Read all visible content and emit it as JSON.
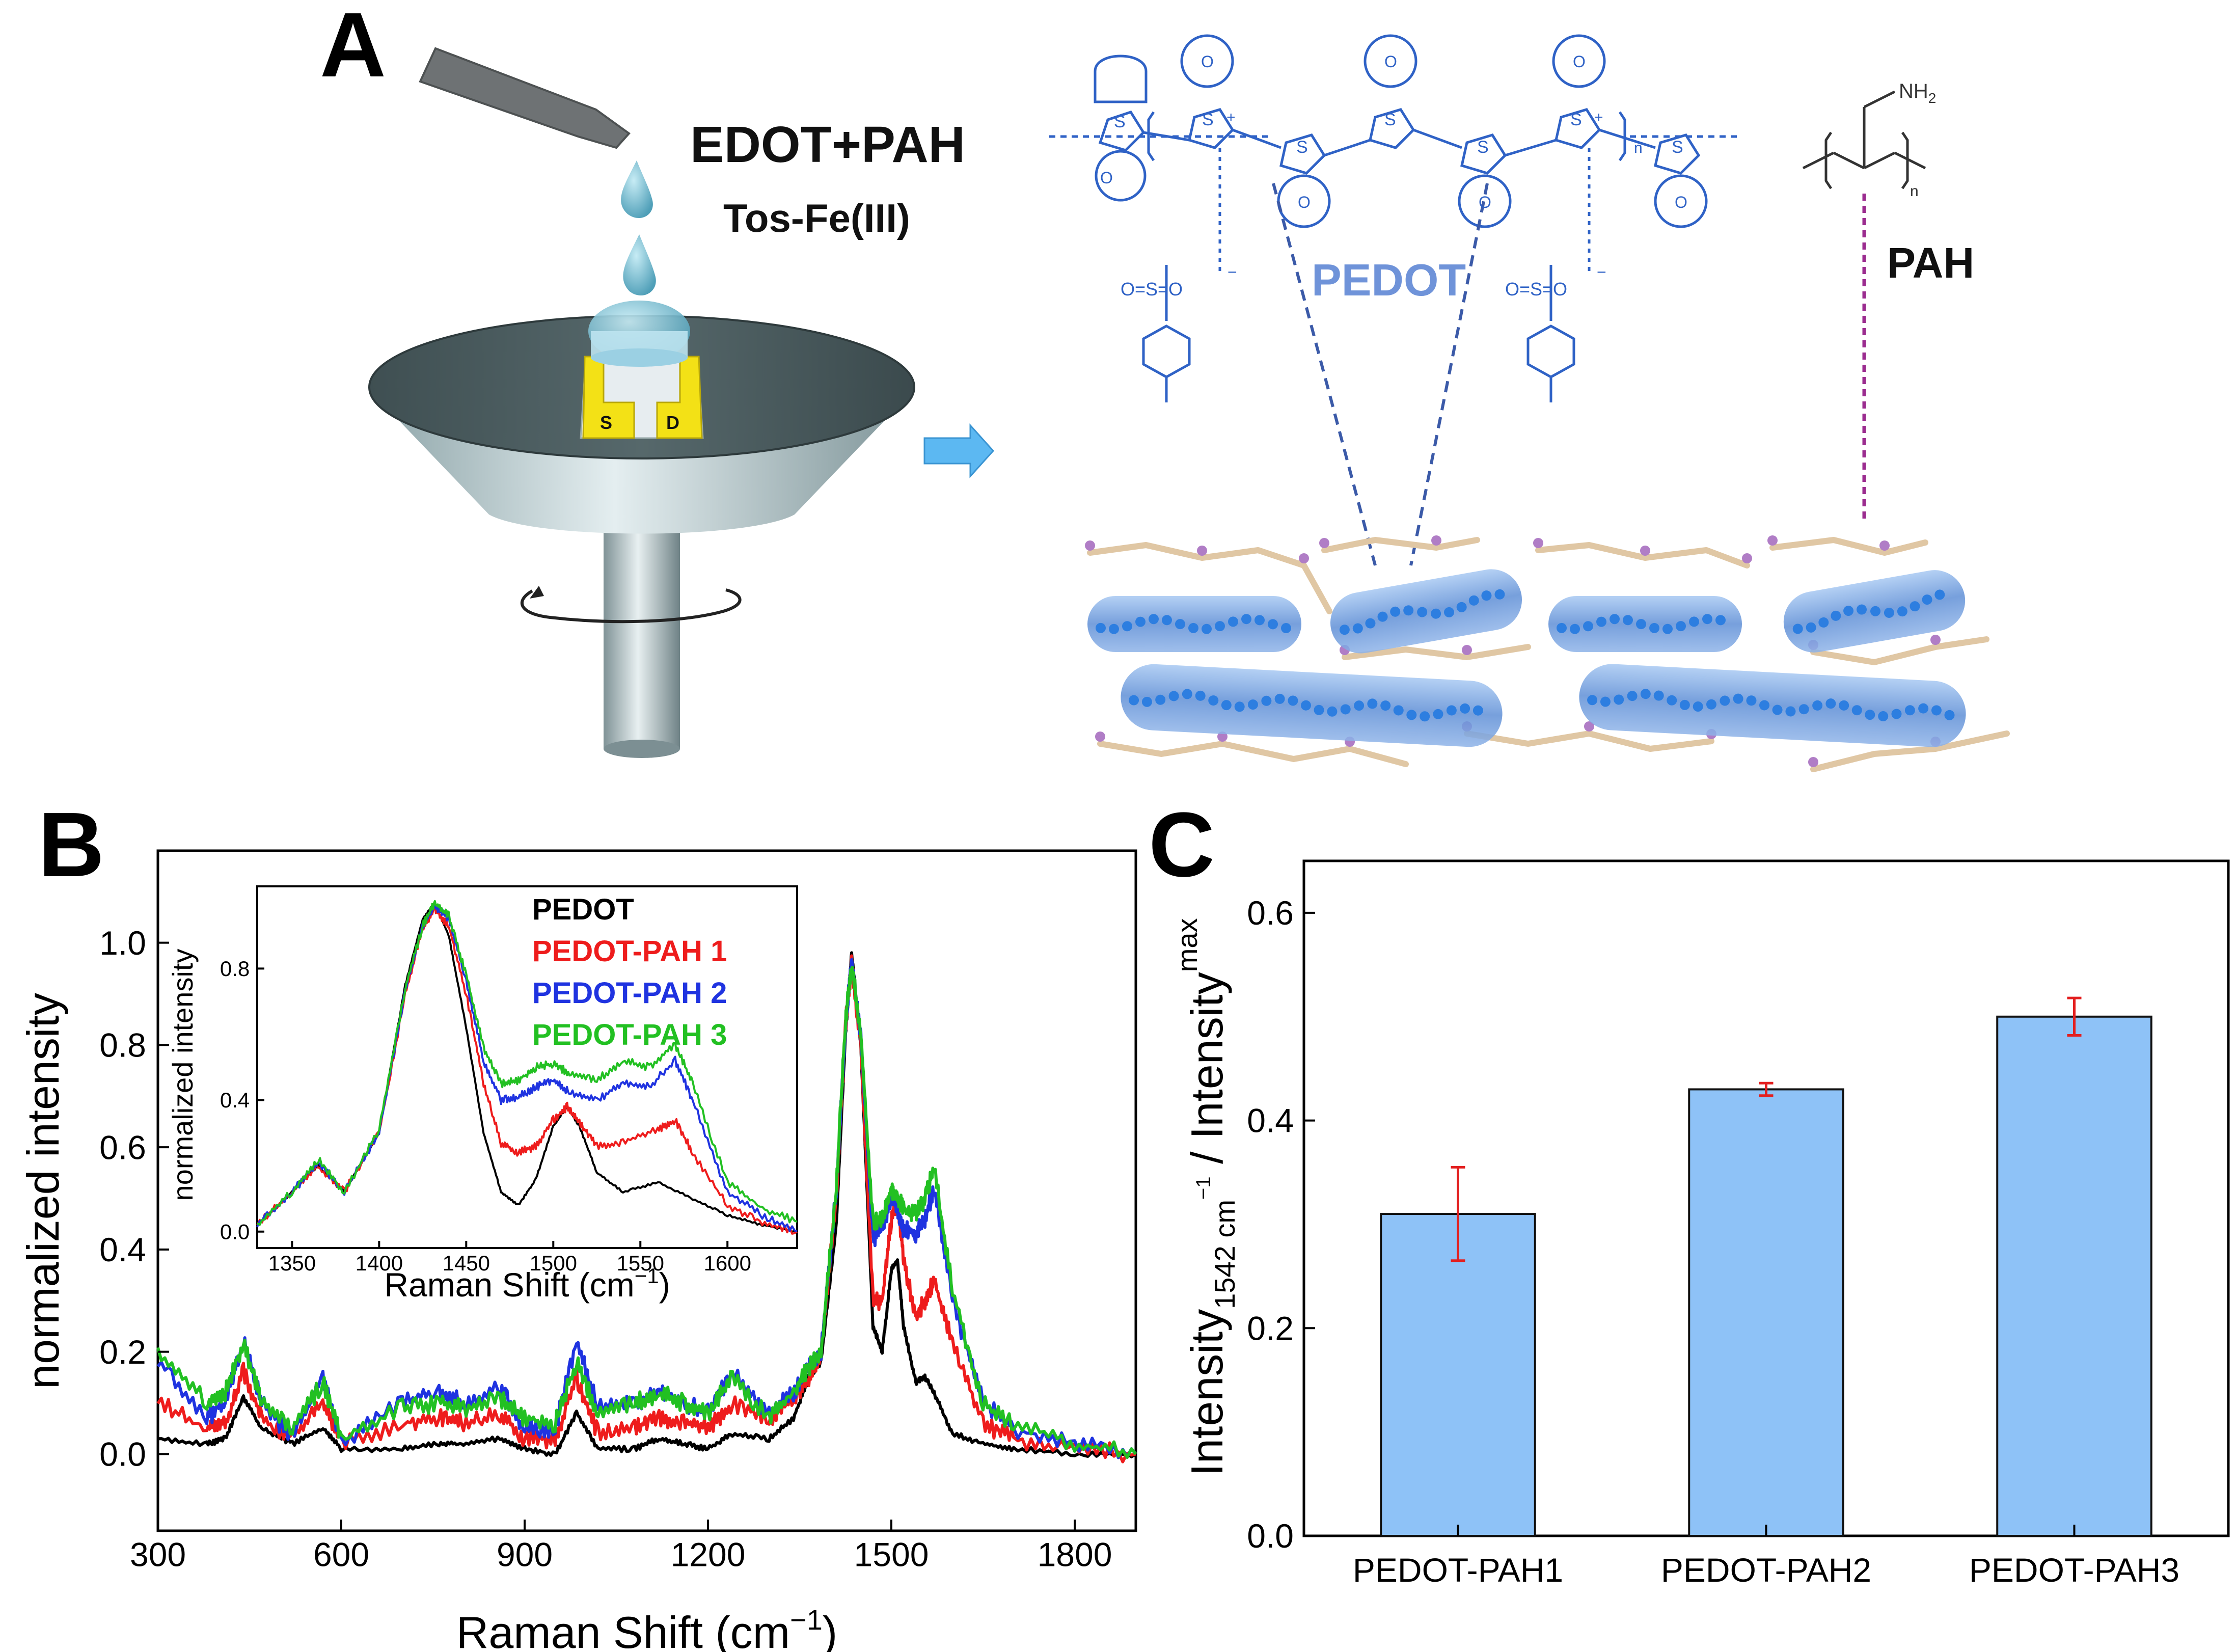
{
  "panels": {
    "a": {
      "letter": "A",
      "reagent_line1": "EDOT+PAH",
      "reagent_line2": "Tos-Fe(III)",
      "electrode_source": "S",
      "electrode_drain": "D",
      "pedot_label": "PEDOT",
      "pah_label": "PAH",
      "nh2": "NH",
      "nh2_sub": "2",
      "sulfur": "S",
      "charge_plus": "+",
      "charge_minus": "−",
      "oxygen": "O",
      "sulfonate": "O=S=O",
      "repeat_n": "n"
    },
    "b": {
      "letter": "B"
    },
    "c": {
      "letter": "C"
    }
  },
  "colors": {
    "pedot_blue": "#2f62c6",
    "pedot_label": "#6f93d9",
    "pah_purple": "#9b2c8f",
    "bar_fill": "#8ec2f7",
    "error_red": "#e31f1f",
    "pedot_black": "#000000",
    "pah1_red": "#ee1c1c",
    "pah2_blue": "#1f33e0",
    "pah3_green": "#22c022",
    "arrow_fill": "#5cb8f2"
  },
  "chart_data": [
    {
      "type": "line",
      "xlabel": "Raman Shift (cm",
      "xlabel_sup": "−1",
      "xlabel_close": ")",
      "ylabel": "normalized intensity",
      "xlim": [
        300,
        1900
      ],
      "ylim": [
        -0.15,
        1.18
      ],
      "x_ticks": [
        "300",
        "600",
        "900",
        "1200",
        "1500",
        "1800"
      ],
      "y_ticks": [
        "0.0",
        "0.2",
        "0.4",
        "0.6",
        "0.8",
        "1.0"
      ],
      "legend_position": "inside-top (inset)",
      "series": [
        {
          "name": "PEDOT",
          "color": "#000000",
          "x": [
            300,
            380,
            410,
            440,
            470,
            520,
            570,
            600,
            700,
            760,
            800,
            860,
            900,
            950,
            985,
            1020,
            1080,
            1120,
            1160,
            1200,
            1240,
            1300,
            1340,
            1365,
            1385,
            1410,
            1425,
            1435,
            1450,
            1470,
            1485,
            1500,
            1510,
            1520,
            1540,
            1555,
            1570,
            1600,
            1650,
            1700,
            1800,
            1900
          ],
          "y": [
            0.03,
            0.02,
            0.03,
            0.11,
            0.05,
            0.02,
            0.05,
            0.01,
            0.01,
            0.02,
            0.02,
            0.03,
            0.01,
            0.0,
            0.08,
            0.01,
            0.01,
            0.03,
            0.02,
            0.01,
            0.04,
            0.03,
            0.07,
            0.15,
            0.18,
            0.45,
            0.82,
            0.98,
            0.8,
            0.25,
            0.2,
            0.36,
            0.38,
            0.25,
            0.14,
            0.15,
            0.12,
            0.04,
            0.02,
            0.01,
            0.0,
            0.0
          ]
        },
        {
          "name": "PEDOT-PAH 1",
          "color": "#ee1c1c",
          "x": [
            300,
            380,
            410,
            440,
            470,
            520,
            570,
            600,
            700,
            760,
            800,
            860,
            900,
            950,
            985,
            1020,
            1080,
            1120,
            1160,
            1200,
            1240,
            1300,
            1340,
            1365,
            1385,
            1410,
            1425,
            1435,
            1450,
            1470,
            1485,
            1500,
            1510,
            1520,
            1540,
            1555,
            1570,
            1600,
            1650,
            1700,
            1800,
            1900
          ],
          "y": [
            0.1,
            0.05,
            0.06,
            0.16,
            0.07,
            0.03,
            0.1,
            0.02,
            0.06,
            0.07,
            0.06,
            0.08,
            0.03,
            0.03,
            0.15,
            0.04,
            0.05,
            0.07,
            0.06,
            0.05,
            0.1,
            0.07,
            0.11,
            0.15,
            0.2,
            0.5,
            0.84,
            0.96,
            0.8,
            0.3,
            0.3,
            0.46,
            0.5,
            0.38,
            0.27,
            0.3,
            0.34,
            0.22,
            0.06,
            0.03,
            0.01,
            0.0
          ]
        },
        {
          "name": "PEDOT-PAH 2",
          "color": "#1f33e0",
          "x": [
            300,
            380,
            410,
            440,
            470,
            520,
            570,
            600,
            700,
            760,
            800,
            860,
            900,
            950,
            985,
            1020,
            1080,
            1120,
            1160,
            1200,
            1240,
            1300,
            1340,
            1365,
            1385,
            1410,
            1425,
            1435,
            1450,
            1470,
            1485,
            1500,
            1510,
            1520,
            1540,
            1555,
            1570,
            1600,
            1650,
            1700,
            1800,
            1900
          ],
          "y": [
            0.18,
            0.07,
            0.1,
            0.22,
            0.1,
            0.03,
            0.15,
            0.02,
            0.1,
            0.12,
            0.1,
            0.13,
            0.05,
            0.05,
            0.22,
            0.09,
            0.1,
            0.12,
            0.1,
            0.08,
            0.16,
            0.08,
            0.12,
            0.17,
            0.2,
            0.52,
            0.84,
            0.96,
            0.82,
            0.42,
            0.44,
            0.5,
            0.48,
            0.44,
            0.43,
            0.46,
            0.52,
            0.3,
            0.1,
            0.05,
            0.02,
            0.0
          ]
        },
        {
          "name": "PEDOT-PAH 3",
          "color": "#22c022",
          "x": [
            300,
            380,
            410,
            440,
            470,
            520,
            570,
            600,
            700,
            760,
            800,
            860,
            900,
            950,
            985,
            1020,
            1080,
            1120,
            1160,
            1200,
            1240,
            1300,
            1340,
            1365,
            1385,
            1410,
            1425,
            1435,
            1450,
            1470,
            1485,
            1500,
            1510,
            1520,
            1540,
            1555,
            1570,
            1600,
            1650,
            1700,
            1800,
            1900
          ],
          "y": [
            0.2,
            0.1,
            0.12,
            0.22,
            0.1,
            0.05,
            0.14,
            0.03,
            0.09,
            0.1,
            0.09,
            0.11,
            0.07,
            0.06,
            0.18,
            0.08,
            0.1,
            0.12,
            0.1,
            0.08,
            0.15,
            0.07,
            0.12,
            0.17,
            0.2,
            0.52,
            0.85,
            0.96,
            0.82,
            0.45,
            0.46,
            0.52,
            0.5,
            0.48,
            0.47,
            0.5,
            0.56,
            0.32,
            0.1,
            0.06,
            0.02,
            0.0
          ]
        }
      ]
    },
    {
      "type": "line",
      "xlabel": "Raman Shift (cm",
      "xlabel_sup": "−1",
      "xlabel_close": ")",
      "ylabel": "normalized intensity",
      "xlim": [
        1330,
        1640
      ],
      "ylim": [
        -0.05,
        1.05
      ],
      "x_ticks": [
        "1350",
        "1400",
        "1450",
        "1500",
        "1550",
        "1600"
      ],
      "y_ticks": [
        "0.0",
        "0.4",
        "0.8"
      ],
      "legend_position": "top-right",
      "series": [
        {
          "name": "PEDOT",
          "color": "#000000",
          "x": [
            1330,
            1350,
            1365,
            1380,
            1400,
            1415,
            1425,
            1432,
            1440,
            1450,
            1460,
            1470,
            1480,
            1490,
            1500,
            1508,
            1515,
            1525,
            1540,
            1560,
            1580,
            1600,
            1620,
            1640
          ],
          "y": [
            0.02,
            0.12,
            0.2,
            0.12,
            0.3,
            0.75,
            0.95,
            1.0,
            0.9,
            0.62,
            0.3,
            0.12,
            0.08,
            0.16,
            0.32,
            0.38,
            0.32,
            0.18,
            0.12,
            0.15,
            0.1,
            0.05,
            0.02,
            0.0
          ]
        },
        {
          "name": "PEDOT-PAH 1",
          "color": "#ee1c1c",
          "x": [
            1330,
            1350,
            1365,
            1380,
            1400,
            1415,
            1425,
            1432,
            1440,
            1450,
            1460,
            1470,
            1480,
            1490,
            1500,
            1508,
            1515,
            1525,
            1540,
            1560,
            1570,
            1580,
            1600,
            1620,
            1640
          ],
          "y": [
            0.02,
            0.12,
            0.2,
            0.12,
            0.3,
            0.72,
            0.92,
            0.98,
            0.93,
            0.72,
            0.45,
            0.27,
            0.24,
            0.26,
            0.34,
            0.38,
            0.33,
            0.26,
            0.27,
            0.31,
            0.34,
            0.24,
            0.08,
            0.03,
            0.0
          ]
        },
        {
          "name": "PEDOT-PAH 2",
          "color": "#1f33e0",
          "x": [
            1330,
            1350,
            1365,
            1380,
            1400,
            1415,
            1425,
            1432,
            1440,
            1450,
            1460,
            1470,
            1480,
            1490,
            1500,
            1510,
            1525,
            1540,
            1555,
            1570,
            1580,
            1600,
            1620,
            1640
          ],
          "y": [
            0.02,
            0.12,
            0.21,
            0.12,
            0.3,
            0.73,
            0.93,
            0.99,
            0.95,
            0.76,
            0.52,
            0.4,
            0.41,
            0.44,
            0.46,
            0.42,
            0.4,
            0.45,
            0.44,
            0.52,
            0.4,
            0.12,
            0.05,
            0.0
          ]
        },
        {
          "name": "PEDOT-PAH 3",
          "color": "#22c022",
          "x": [
            1330,
            1350,
            1365,
            1380,
            1400,
            1415,
            1425,
            1432,
            1440,
            1450,
            1460,
            1470,
            1480,
            1490,
            1500,
            1510,
            1525,
            1540,
            1555,
            1570,
            1580,
            1600,
            1620,
            1640
          ],
          "y": [
            0.02,
            0.12,
            0.22,
            0.12,
            0.31,
            0.74,
            0.93,
            1.0,
            0.96,
            0.78,
            0.56,
            0.45,
            0.46,
            0.5,
            0.51,
            0.48,
            0.46,
            0.52,
            0.5,
            0.57,
            0.45,
            0.15,
            0.07,
            0.03
          ]
        }
      ]
    },
    {
      "type": "bar",
      "categories": [
        "PEDOT-PAH1",
        "PEDOT-PAH2",
        "PEDOT-PAH3"
      ],
      "values": [
        0.31,
        0.43,
        0.5
      ],
      "errors": [
        0.045,
        0.006,
        0.018
      ],
      "ylabel": "Intensity",
      "ylabel_sub1": "1542 cm",
      "ylabel_sub1_sup": "−1",
      "ylabel_mid": " / Intensity",
      "ylabel_sub2": "max",
      "ylim": [
        0.0,
        0.65
      ],
      "y_ticks": [
        "0.0",
        "0.2",
        "0.4",
        "0.6"
      ],
      "grid": false
    }
  ]
}
